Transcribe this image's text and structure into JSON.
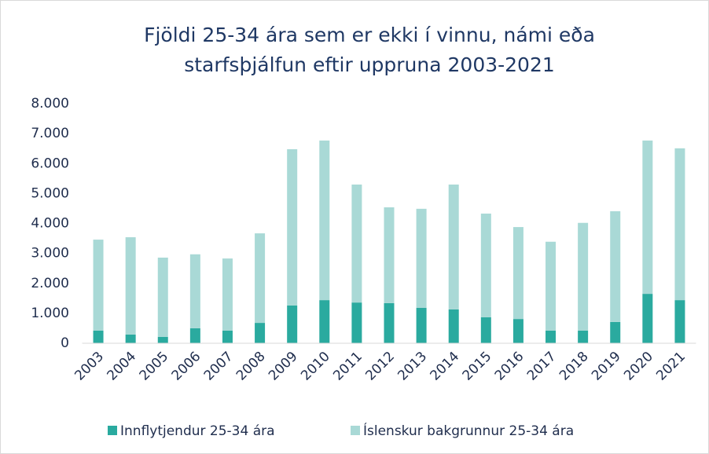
{
  "chart_data": {
    "type": "stacked_bar",
    "title": [
      "Fjöldi 25-34 ára sem er ekki í vinnu, námi eða",
      "starfsþjálfun eftir uppruna 2003-2021"
    ],
    "categories": [
      "2003",
      "2004",
      "2005",
      "2006",
      "2007",
      "2008",
      "2009",
      "2010",
      "2011",
      "2012",
      "2013",
      "2014",
      "2015",
      "2016",
      "2017",
      "2018",
      "2019",
      "2020",
      "2021"
    ],
    "series": [
      {
        "name": "Innflytjendur 25-34 ára",
        "color": "#2aaa9f",
        "values": [
          420,
          290,
          210,
          500,
          420,
          680,
          1260,
          1440,
          1360,
          1340,
          1180,
          1130,
          870,
          810,
          420,
          420,
          710,
          1650,
          1440
        ]
      },
      {
        "name": "Íslenskur bakgrunnur 25-34 ára",
        "color": "#a9d9d6",
        "values": [
          3040,
          3250,
          2650,
          2470,
          2410,
          2990,
          5220,
          5330,
          3940,
          3200,
          3310,
          4170,
          3460,
          3070,
          2970,
          3600,
          3700,
          5120,
          5070
        ]
      }
    ],
    "ylim": [
      0,
      8000
    ],
    "yticks": [
      0,
      {
        "value": 1000,
        "label": "1.000"
      },
      {
        "value": 2000,
        "label": "2.000"
      },
      {
        "value": 3000,
        "label": "3.000"
      },
      {
        "value": 4000,
        "label": "4.000"
      },
      {
        "value": 5000,
        "label": "5.000"
      },
      {
        "value": 6000,
        "label": "6.000"
      },
      {
        "value": 7000,
        "label": "7.000"
      },
      {
        "value": 8000,
        "label": "8.000"
      }
    ],
    "grid": false,
    "legend": "bottom"
  }
}
